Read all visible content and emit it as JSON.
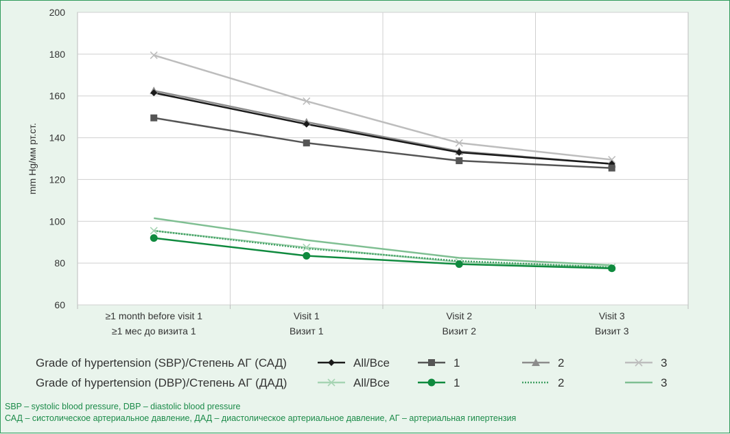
{
  "chart_data": {
    "type": "line",
    "ylabel": "mm Hg/мм рт.ст.",
    "ylim": [
      60,
      200
    ],
    "yticks": [
      60,
      80,
      100,
      120,
      140,
      160,
      180,
      200
    ],
    "grid": true,
    "categories": [
      [
        "≥1 month before visit 1",
        "≥1 мес до визита 1"
      ],
      [
        "Visit 1",
        "Визит 1"
      ],
      [
        "Visit 2",
        "Визит 2"
      ],
      [
        "Visit 3",
        "Визит 3"
      ]
    ],
    "series": [
      {
        "group": "sbp",
        "name": "All/Все",
        "color": "#1a1a1a",
        "marker": "diamond",
        "dash": "solid",
        "values": [
          161.5,
          146.5,
          133,
          127.5
        ]
      },
      {
        "group": "sbp",
        "name": "1",
        "color": "#555555",
        "marker": "square",
        "dash": "solid",
        "values": [
          149.5,
          137.5,
          129,
          125.5
        ]
      },
      {
        "group": "sbp",
        "name": "2",
        "color": "#8c8c8c",
        "marker": "triangle",
        "dash": "solid",
        "values": [
          162.5,
          147.5,
          133.5,
          127.5
        ]
      },
      {
        "group": "sbp",
        "name": "3",
        "color": "#bdbdbd",
        "marker": "x",
        "dash": "solid",
        "values": [
          179.5,
          157.5,
          137.5,
          129.5
        ]
      },
      {
        "group": "dbp",
        "name": "All/Все",
        "color": "#a6d4b3",
        "marker": "x",
        "dash": "solid",
        "values": [
          95.5,
          87.5,
          80.5,
          78
        ]
      },
      {
        "group": "dbp",
        "name": "1",
        "color": "#0f8a3e",
        "marker": "circle",
        "dash": "solid",
        "values": [
          92,
          83.5,
          79.5,
          77.5
        ]
      },
      {
        "group": "dbp",
        "name": "2",
        "color": "#3f9f62",
        "marker": "none",
        "dash": "dotted",
        "values": [
          95.5,
          87,
          81,
          78
        ]
      },
      {
        "group": "dbp",
        "name": "3",
        "color": "#7fbf92",
        "marker": "none",
        "dash": "solid",
        "values": [
          101.5,
          91,
          82.5,
          79
        ]
      }
    ]
  },
  "legend": {
    "sbp_title": "Grade of hypertension (SBP)/Степень АГ (САД)",
    "dbp_title": "Grade of hypertension (DBP)/Степень АГ (ДАД)"
  },
  "footnotes": {
    "line1": "SBP – systolic blood pressure, DBP – diastolic blood pressure",
    "line2": "САД – систолическое артериальное давление, ДАД – диастолическое артериальное давление, АГ – артериальная гипертензия"
  }
}
